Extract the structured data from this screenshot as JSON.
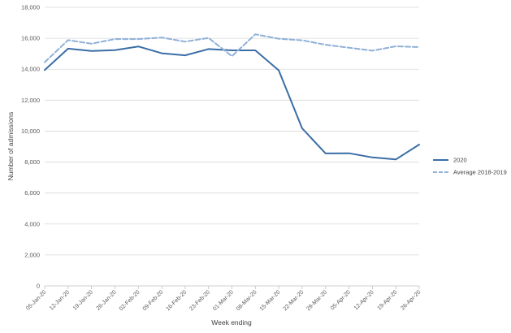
{
  "chart_data": {
    "type": "line",
    "title": "",
    "xlabel": "Week ending",
    "ylabel": "Number of admissions",
    "ylim": [
      0,
      18000
    ],
    "yticks": [
      0,
      2000,
      4000,
      6000,
      8000,
      10000,
      12000,
      14000,
      16000,
      18000
    ],
    "ytick_labels": [
      "0",
      "2,000",
      "4,000",
      "6,000",
      "8,000",
      "10,000",
      "12,000",
      "14,000",
      "16,000",
      "18,000"
    ],
    "categories": [
      "05-Jan-20",
      "12-Jan-20",
      "19-Jan-20",
      "26-Jan-20",
      "02-Feb-20",
      "09-Feb-20",
      "16-Feb-20",
      "23-Feb-20",
      "01-Mar-20",
      "08-Mar-20",
      "15-Mar-20",
      "22-Mar-20",
      "29-Mar-20",
      "05-Apr-20",
      "12-Apr-20",
      "19-Apr-20",
      "26-Apr-20"
    ],
    "series": [
      {
        "name": "2020",
        "color": "#3a6ea5",
        "dash": "solid",
        "values": [
          13950,
          15330,
          15180,
          15230,
          15470,
          15030,
          14900,
          15300,
          15220,
          15220,
          13930,
          10180,
          8560,
          8570,
          8300,
          8170,
          9130
        ]
      },
      {
        "name": "Average 2018-2019",
        "color": "#8fb0d8",
        "dash": "dashed",
        "values": [
          14450,
          15880,
          15650,
          15950,
          15950,
          16050,
          15780,
          16020,
          14840,
          16260,
          15970,
          15870,
          15580,
          15390,
          15200,
          15480,
          15430
        ]
      }
    ],
    "grid": true,
    "legend_position": "right"
  }
}
